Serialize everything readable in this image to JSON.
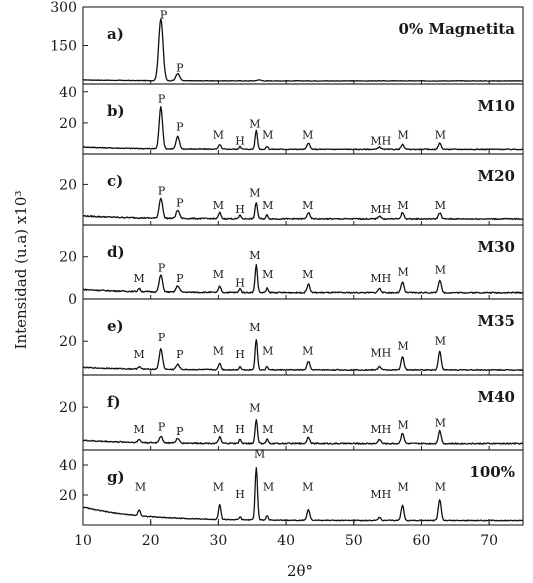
{
  "chart_data": {
    "type": "line",
    "xlabel": "2θ°",
    "ylabel": "Intensidad (u.a) x10³",
    "xlim": [
      10,
      75
    ],
    "x_ticks": [
      10,
      20,
      30,
      40,
      50,
      60,
      70
    ],
    "peak_positions": {
      "P1": 21.5,
      "P2": 24.0,
      "M1": 18.3,
      "M2": 30.2,
      "H1": 33.2,
      "M3": 35.6,
      "M4": 37.2,
      "M5": 43.3,
      "MH": 53.8,
      "M6": 57.2,
      "M7": 62.7
    },
    "panels": [
      {
        "id": "a",
        "letter": "a)",
        "sample": "0% Magnetita",
        "ylim": [
          0,
          300
        ],
        "y_ticks": [
          150,
          300
        ],
        "y_tick_labels": [
          "150",
          "300"
        ],
        "baseline": 12,
        "rise": 4,
        "noise": 2,
        "peaks": [
          {
            "x": 21.5,
            "h": 240,
            "w": 0.45
          },
          {
            "x": 24.0,
            "h": 28,
            "w": 0.4
          },
          {
            "x": 36.0,
            "h": 4,
            "w": 0.4
          }
        ],
        "labels": [
          {
            "text": "P",
            "x": 21.9,
            "y": 255
          },
          {
            "text": "P",
            "x": 24.3,
            "y": 48
          }
        ]
      },
      {
        "id": "b",
        "letter": "b)",
        "sample": "M10",
        "ylim": [
          0,
          45
        ],
        "y_ticks": [
          20,
          40
        ],
        "y_tick_labels": [
          "20",
          "40"
        ],
        "baseline": 3,
        "rise": 1.5,
        "noise": 0.6,
        "peaks": [
          {
            "x": 21.5,
            "h": 27,
            "w": 0.35
          },
          {
            "x": 24.0,
            "h": 8,
            "w": 0.35
          },
          {
            "x": 30.2,
            "h": 3,
            "w": 0.25
          },
          {
            "x": 33.2,
            "h": 2,
            "w": 0.2
          },
          {
            "x": 35.6,
            "h": 12,
            "w": 0.25
          },
          {
            "x": 37.2,
            "h": 2,
            "w": 0.2
          },
          {
            "x": 43.3,
            "h": 4,
            "w": 0.3
          },
          {
            "x": 53.8,
            "h": 1.5,
            "w": 0.3
          },
          {
            "x": 57.2,
            "h": 3,
            "w": 0.3
          },
          {
            "x": 62.7,
            "h": 4,
            "w": 0.3
          }
        ],
        "labels": [
          {
            "text": "P",
            "x": 21.6,
            "y": 33
          },
          {
            "text": "P",
            "x": 24.3,
            "y": 15
          },
          {
            "text": "M",
            "x": 30.0,
            "y": 10
          },
          {
            "text": "H",
            "x": 33.2,
            "y": 6
          },
          {
            "text": "M",
            "x": 35.4,
            "y": 17
          },
          {
            "text": "M",
            "x": 37.3,
            "y": 10
          },
          {
            "text": "M",
            "x": 43.2,
            "y": 10
          },
          {
            "text": "MH",
            "x": 54.0,
            "y": 6
          },
          {
            "text": "M",
            "x": 57.3,
            "y": 10
          },
          {
            "text": "M",
            "x": 62.8,
            "y": 10
          }
        ]
      },
      {
        "id": "c",
        "letter": "c)",
        "sample": "M20",
        "ylim": [
          0,
          35
        ],
        "y_ticks": [
          20
        ],
        "y_tick_labels": [
          "20"
        ],
        "baseline": 3,
        "rise": 1.5,
        "noise": 0.6,
        "peaks": [
          {
            "x": 21.5,
            "h": 10,
            "w": 0.35
          },
          {
            "x": 24.0,
            "h": 4,
            "w": 0.35
          },
          {
            "x": 30.2,
            "h": 3,
            "w": 0.25
          },
          {
            "x": 33.2,
            "h": 2,
            "w": 0.2
          },
          {
            "x": 35.6,
            "h": 8,
            "w": 0.25
          },
          {
            "x": 37.2,
            "h": 2,
            "w": 0.2
          },
          {
            "x": 43.3,
            "h": 3,
            "w": 0.3
          },
          {
            "x": 53.8,
            "h": 1.5,
            "w": 0.3
          },
          {
            "x": 57.2,
            "h": 3,
            "w": 0.3
          },
          {
            "x": 62.7,
            "h": 3,
            "w": 0.3
          }
        ],
        "labels": [
          {
            "text": "P",
            "x": 21.6,
            "y": 15
          },
          {
            "text": "P",
            "x": 24.3,
            "y": 9
          },
          {
            "text": "M",
            "x": 30.0,
            "y": 8
          },
          {
            "text": "H",
            "x": 33.2,
            "y": 6
          },
          {
            "text": "M",
            "x": 35.4,
            "y": 14
          },
          {
            "text": "M",
            "x": 37.3,
            "y": 8
          },
          {
            "text": "M",
            "x": 43.2,
            "y": 8
          },
          {
            "text": "MH",
            "x": 54.0,
            "y": 6
          },
          {
            "text": "M",
            "x": 57.3,
            "y": 8
          },
          {
            "text": "M",
            "x": 62.8,
            "y": 8
          }
        ]
      },
      {
        "id": "d",
        "letter": "d)",
        "sample": "M30",
        "ylim": [
          0,
          35
        ],
        "y_ticks": [
          0,
          20
        ],
        "y_tick_labels": [
          "0",
          "20"
        ],
        "baseline": 3,
        "rise": 1.5,
        "noise": 0.6,
        "peaks": [
          {
            "x": 18.3,
            "h": 1.5,
            "w": 0.25
          },
          {
            "x": 21.5,
            "h": 8,
            "w": 0.35
          },
          {
            "x": 24.0,
            "h": 3,
            "w": 0.35
          },
          {
            "x": 30.2,
            "h": 3,
            "w": 0.25
          },
          {
            "x": 33.2,
            "h": 2,
            "w": 0.2
          },
          {
            "x": 35.6,
            "h": 13,
            "w": 0.25
          },
          {
            "x": 37.2,
            "h": 2,
            "w": 0.2
          },
          {
            "x": 43.3,
            "h": 4,
            "w": 0.3
          },
          {
            "x": 53.8,
            "h": 2,
            "w": 0.3
          },
          {
            "x": 57.2,
            "h": 5,
            "w": 0.3
          },
          {
            "x": 62.7,
            "h": 6,
            "w": 0.3
          }
        ],
        "labels": [
          {
            "text": "M",
            "x": 18.3,
            "y": 8
          },
          {
            "text": "P",
            "x": 21.6,
            "y": 13
          },
          {
            "text": "P",
            "x": 24.3,
            "y": 8
          },
          {
            "text": "M",
            "x": 30.0,
            "y": 10
          },
          {
            "text": "H",
            "x": 33.2,
            "y": 6
          },
          {
            "text": "M",
            "x": 35.4,
            "y": 19
          },
          {
            "text": "M",
            "x": 37.3,
            "y": 10
          },
          {
            "text": "M",
            "x": 43.2,
            "y": 10
          },
          {
            "text": "MH",
            "x": 54.0,
            "y": 8
          },
          {
            "text": "M",
            "x": 57.3,
            "y": 11
          },
          {
            "text": "M",
            "x": 62.8,
            "y": 12
          }
        ]
      },
      {
        "id": "e",
        "letter": "e)",
        "sample": "M35",
        "ylim": [
          0,
          45
        ],
        "y_ticks": [
          20
        ],
        "y_tick_labels": [
          "20"
        ],
        "baseline": 3,
        "rise": 1.5,
        "noise": 0.6,
        "peaks": [
          {
            "x": 18.3,
            "h": 1.5,
            "w": 0.25
          },
          {
            "x": 21.5,
            "h": 12,
            "w": 0.35
          },
          {
            "x": 24.0,
            "h": 3,
            "w": 0.35
          },
          {
            "x": 30.2,
            "h": 4,
            "w": 0.25
          },
          {
            "x": 33.2,
            "h": 2,
            "w": 0.2
          },
          {
            "x": 35.6,
            "h": 18,
            "w": 0.25
          },
          {
            "x": 37.2,
            "h": 2,
            "w": 0.2
          },
          {
            "x": 43.3,
            "h": 5,
            "w": 0.3
          },
          {
            "x": 53.8,
            "h": 2,
            "w": 0.3
          },
          {
            "x": 57.2,
            "h": 8,
            "w": 0.3
          },
          {
            "x": 62.7,
            "h": 11,
            "w": 0.3
          }
        ],
        "labels": [
          {
            "text": "M",
            "x": 18.3,
            "y": 10
          },
          {
            "text": "P",
            "x": 21.6,
            "y": 20
          },
          {
            "text": "P",
            "x": 24.3,
            "y": 10
          },
          {
            "text": "M",
            "x": 30.0,
            "y": 12
          },
          {
            "text": "H",
            "x": 33.2,
            "y": 10
          },
          {
            "text": "M",
            "x": 35.4,
            "y": 26
          },
          {
            "text": "M",
            "x": 37.3,
            "y": 12
          },
          {
            "text": "M",
            "x": 43.2,
            "y": 12
          },
          {
            "text": "MH",
            "x": 54.0,
            "y": 11
          },
          {
            "text": "M",
            "x": 57.3,
            "y": 15
          },
          {
            "text": "M",
            "x": 62.8,
            "y": 18
          }
        ]
      },
      {
        "id": "f",
        "letter": "f)",
        "sample": "M40",
        "ylim": [
          0,
          35
        ],
        "y_ticks": [
          20
        ],
        "y_tick_labels": [
          "20"
        ],
        "baseline": 3,
        "rise": 1.5,
        "noise": 0.6,
        "peaks": [
          {
            "x": 18.3,
            "h": 1.5,
            "w": 0.25
          },
          {
            "x": 21.5,
            "h": 3,
            "w": 0.35
          },
          {
            "x": 24.0,
            "h": 2,
            "w": 0.35
          },
          {
            "x": 30.2,
            "h": 3,
            "w": 0.25
          },
          {
            "x": 33.2,
            "h": 2,
            "w": 0.2
          },
          {
            "x": 35.6,
            "h": 11,
            "w": 0.25
          },
          {
            "x": 37.2,
            "h": 2,
            "w": 0.2
          },
          {
            "x": 43.3,
            "h": 3,
            "w": 0.3
          },
          {
            "x": 53.8,
            "h": 2,
            "w": 0.3
          },
          {
            "x": 57.2,
            "h": 5,
            "w": 0.3
          },
          {
            "x": 62.7,
            "h": 6,
            "w": 0.3
          }
        ],
        "labels": [
          {
            "text": "M",
            "x": 18.3,
            "y": 8
          },
          {
            "text": "P",
            "x": 21.6,
            "y": 9
          },
          {
            "text": "P",
            "x": 24.3,
            "y": 7
          },
          {
            "text": "M",
            "x": 30.0,
            "y": 8
          },
          {
            "text": "H",
            "x": 33.2,
            "y": 8
          },
          {
            "text": "M",
            "x": 35.4,
            "y": 18
          },
          {
            "text": "M",
            "x": 37.3,
            "y": 8
          },
          {
            "text": "M",
            "x": 43.2,
            "y": 8
          },
          {
            "text": "MH",
            "x": 54.0,
            "y": 8
          },
          {
            "text": "M",
            "x": 57.3,
            "y": 10
          },
          {
            "text": "M",
            "x": 62.8,
            "y": 11
          }
        ]
      },
      {
        "id": "g",
        "letter": "g)",
        "sample": "100%",
        "ylim": [
          0,
          50
        ],
        "y_ticks": [
          20,
          40
        ],
        "y_tick_labels": [
          "20",
          "40"
        ],
        "baseline": 3,
        "rise": 9,
        "noise": 0.6,
        "peaks": [
          {
            "x": 18.3,
            "h": 4,
            "w": 0.25
          },
          {
            "x": 30.2,
            "h": 10,
            "w": 0.25
          },
          {
            "x": 33.2,
            "h": 2,
            "w": 0.2
          },
          {
            "x": 35.6,
            "h": 35,
            "w": 0.25
          },
          {
            "x": 37.2,
            "h": 3,
            "w": 0.2
          },
          {
            "x": 43.3,
            "h": 7,
            "w": 0.3
          },
          {
            "x": 53.8,
            "h": 2,
            "w": 0.3
          },
          {
            "x": 57.2,
            "h": 10,
            "w": 0.3
          },
          {
            "x": 62.7,
            "h": 14,
            "w": 0.3
          }
        ],
        "labels": [
          {
            "text": "M",
            "x": 18.5,
            "y": 23
          },
          {
            "text": "M",
            "x": 30.0,
            "y": 23
          },
          {
            "text": "H",
            "x": 33.2,
            "y": 18
          },
          {
            "text": "M",
            "x": 36.1,
            "y": 45
          },
          {
            "text": "M",
            "x": 37.4,
            "y": 23
          },
          {
            "text": "M",
            "x": 43.2,
            "y": 23
          },
          {
            "text": "MH",
            "x": 54.0,
            "y": 18
          },
          {
            "text": "M",
            "x": 57.3,
            "y": 23
          },
          {
            "text": "M",
            "x": 62.8,
            "y": 23
          }
        ]
      }
    ]
  }
}
